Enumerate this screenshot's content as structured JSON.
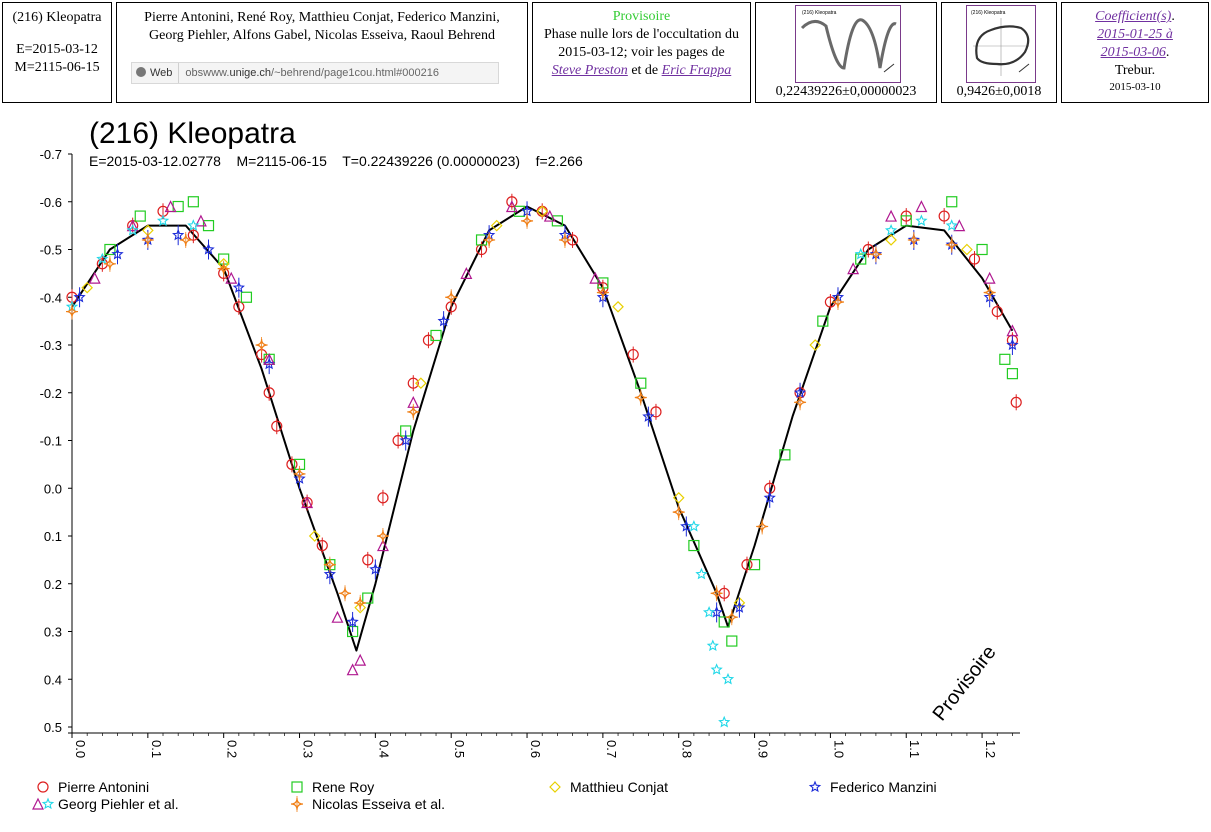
{
  "header": {
    "cell1": {
      "name": "(216) Kleopatra",
      "epoch": "E=2015-03-12",
      "mid": "M=2115-06-15"
    },
    "cell2": {
      "observers_line1": "Pierre Antonini, René Roy, Matthieu Conjat, Federico Manzini,",
      "observers_line2": "Georg Piehler, Alfons Gabel, Nicolas Esseiva, Raoul Behrend",
      "web_button": "Web",
      "web_url_prefix": "obswww.",
      "web_url_domain": "unige.ch",
      "web_url_rest": "/~behrend/page1cou.html#000216"
    },
    "cell3": {
      "status": "Provisoire",
      "line1": "Phase nulle lors de l'occultation du",
      "line2": "2015-03-12; voir les pages de",
      "link1": "Steve Preston",
      "connector": "et de",
      "link2": "Eric Frappa",
      "status_color": "#33cc33"
    },
    "cell4": {
      "value": "0,22439226±0,00000023",
      "thumb_title": "(216) Kleopatra"
    },
    "cell5": {
      "value": "0,9426±0,0018",
      "thumb_title": "(216) Kleopatra"
    },
    "cell6": {
      "link1": "Coefficient(s)",
      "link2": "2015-01-25 à",
      "link3": "2015-03-06",
      "author": "Trebur.",
      "date": "2015-03-10"
    }
  },
  "chart_data": {
    "type": "scatter",
    "title": "(216) Kleopatra",
    "subtitle": "E=2015-03-12.02778    M=2115-06-15    T=0.22439226 (0.00000023)    f=2.266",
    "watermark": "Provisoire",
    "xlim": [
      0.0,
      1.25
    ],
    "ylim": [
      -0.7,
      0.5
    ],
    "y_inverted": true,
    "xticks": [
      "0.0",
      "0.1",
      "0.2",
      "0.3",
      "0.4",
      "0.5",
      "0.6",
      "0.7",
      "0.8",
      "0.9",
      "1.0",
      "1.1",
      "1.2"
    ],
    "yticks": [
      "-0.7",
      "-0.6",
      "-0.5",
      "-0.4",
      "-0.3",
      "-0.2",
      "-0.1",
      "0.0",
      "0.1",
      "0.2",
      "0.3",
      "0.4",
      "0.5"
    ],
    "fit_curve": {
      "color": "#000000",
      "x": [
        0.0,
        0.05,
        0.1,
        0.15,
        0.2,
        0.25,
        0.3,
        0.35,
        0.375,
        0.4,
        0.45,
        0.5,
        0.55,
        0.6,
        0.65,
        0.7,
        0.75,
        0.8,
        0.85,
        0.865,
        0.9,
        0.95,
        1.0,
        1.05,
        1.1,
        1.15,
        1.2,
        1.24
      ],
      "y": [
        -0.38,
        -0.5,
        -0.55,
        -0.55,
        -0.46,
        -0.25,
        0.0,
        0.22,
        0.34,
        0.2,
        -0.12,
        -0.38,
        -0.54,
        -0.59,
        -0.55,
        -0.42,
        -0.2,
        0.04,
        0.22,
        0.29,
        0.12,
        -0.15,
        -0.38,
        -0.5,
        -0.55,
        -0.54,
        -0.44,
        -0.33
      ]
    },
    "series": [
      {
        "name": "Pierre Antonini",
        "color": "#dd2020",
        "marker": "circle-bar",
        "points": [
          [
            0.0,
            -0.4
          ],
          [
            0.04,
            -0.47
          ],
          [
            0.08,
            -0.55
          ],
          [
            0.12,
            -0.58
          ],
          [
            0.16,
            -0.53
          ],
          [
            0.2,
            -0.45
          ],
          [
            0.22,
            -0.38
          ],
          [
            0.25,
            -0.28
          ],
          [
            0.26,
            -0.2
          ],
          [
            0.27,
            -0.13
          ],
          [
            0.29,
            -0.05
          ],
          [
            0.31,
            0.03
          ],
          [
            0.33,
            0.12
          ],
          [
            0.39,
            0.15
          ],
          [
            0.41,
            0.02
          ],
          [
            0.43,
            -0.1
          ],
          [
            0.45,
            -0.22
          ],
          [
            0.47,
            -0.31
          ],
          [
            0.5,
            -0.38
          ],
          [
            0.54,
            -0.5
          ],
          [
            0.58,
            -0.6
          ],
          [
            0.62,
            -0.58
          ],
          [
            0.66,
            -0.52
          ],
          [
            0.7,
            -0.42
          ],
          [
            0.74,
            -0.28
          ],
          [
            0.77,
            -0.16
          ],
          [
            0.86,
            0.22
          ],
          [
            0.89,
            0.16
          ],
          [
            0.92,
            0.0
          ],
          [
            0.96,
            -0.2
          ],
          [
            1.0,
            -0.39
          ],
          [
            1.05,
            -0.5
          ],
          [
            1.1,
            -0.57
          ],
          [
            1.15,
            -0.57
          ],
          [
            1.19,
            -0.48
          ],
          [
            1.22,
            -0.37
          ],
          [
            1.24,
            -0.31
          ],
          [
            1.245,
            -0.18
          ]
        ]
      },
      {
        "name": "Rene Roy",
        "color": "#22cc22",
        "marker": "square",
        "points": [
          [
            0.05,
            -0.5
          ],
          [
            0.09,
            -0.57
          ],
          [
            0.14,
            -0.59
          ],
          [
            0.16,
            -0.6
          ],
          [
            0.18,
            -0.55
          ],
          [
            0.2,
            -0.48
          ],
          [
            0.23,
            -0.4
          ],
          [
            0.26,
            -0.27
          ],
          [
            0.3,
            -0.05
          ],
          [
            0.34,
            0.16
          ],
          [
            0.37,
            0.3
          ],
          [
            0.39,
            0.23
          ],
          [
            0.44,
            -0.12
          ],
          [
            0.48,
            -0.32
          ],
          [
            0.54,
            -0.52
          ],
          [
            0.59,
            -0.58
          ],
          [
            0.64,
            -0.56
          ],
          [
            0.7,
            -0.43
          ],
          [
            0.75,
            -0.22
          ],
          [
            0.82,
            0.12
          ],
          [
            0.86,
            0.28
          ],
          [
            0.87,
            0.32
          ],
          [
            0.9,
            0.16
          ],
          [
            0.94,
            -0.07
          ],
          [
            0.99,
            -0.35
          ],
          [
            1.04,
            -0.48
          ],
          [
            1.1,
            -0.56
          ],
          [
            1.16,
            -0.6
          ],
          [
            1.2,
            -0.5
          ],
          [
            1.23,
            -0.27
          ],
          [
            1.24,
            -0.24
          ]
        ]
      },
      {
        "name": "Matthieu Conjat",
        "color": "#e8d000",
        "marker": "diamond",
        "points": [
          [
            0.02,
            -0.42
          ],
          [
            0.1,
            -0.54
          ],
          [
            0.2,
            -0.47
          ],
          [
            0.32,
            0.1
          ],
          [
            0.38,
            0.25
          ],
          [
            0.46,
            -0.22
          ],
          [
            0.56,
            -0.55
          ],
          [
            0.62,
            -0.58
          ],
          [
            0.72,
            -0.38
          ],
          [
            0.8,
            0.02
          ],
          [
            0.88,
            0.24
          ],
          [
            0.98,
            -0.3
          ],
          [
            1.08,
            -0.52
          ],
          [
            1.18,
            -0.5
          ]
        ]
      },
      {
        "name": "Federico Manzini",
        "color": "#1a2ad8",
        "marker": "bar-star",
        "points": [
          [
            0.01,
            -0.4
          ],
          [
            0.06,
            -0.49
          ],
          [
            0.1,
            -0.52
          ],
          [
            0.14,
            -0.53
          ],
          [
            0.18,
            -0.5
          ],
          [
            0.22,
            -0.42
          ],
          [
            0.26,
            -0.26
          ],
          [
            0.3,
            -0.02
          ],
          [
            0.34,
            0.18
          ],
          [
            0.37,
            0.28
          ],
          [
            0.4,
            0.17
          ],
          [
            0.44,
            -0.1
          ],
          [
            0.49,
            -0.35
          ],
          [
            0.55,
            -0.53
          ],
          [
            0.6,
            -0.58
          ],
          [
            0.65,
            -0.53
          ],
          [
            0.7,
            -0.4
          ],
          [
            0.76,
            -0.15
          ],
          [
            0.81,
            0.08
          ],
          [
            0.85,
            0.26
          ],
          [
            0.88,
            0.25
          ],
          [
            0.92,
            0.02
          ],
          [
            0.96,
            -0.2
          ],
          [
            1.01,
            -0.4
          ],
          [
            1.06,
            -0.49
          ],
          [
            1.11,
            -0.52
          ],
          [
            1.16,
            -0.51
          ],
          [
            1.21,
            -0.4
          ],
          [
            1.24,
            -0.3
          ]
        ]
      },
      {
        "name": "Georg Piehler et al.",
        "color": "#b01890",
        "marker": "triangle",
        "points": [
          [
            0.03,
            -0.44
          ],
          [
            0.08,
            -0.55
          ],
          [
            0.13,
            -0.59
          ],
          [
            0.17,
            -0.56
          ],
          [
            0.21,
            -0.44
          ],
          [
            0.26,
            -0.27
          ],
          [
            0.31,
            0.03
          ],
          [
            0.35,
            0.27
          ],
          [
            0.37,
            0.38
          ],
          [
            0.38,
            0.36
          ],
          [
            0.41,
            0.12
          ],
          [
            0.45,
            -0.18
          ],
          [
            0.52,
            -0.45
          ],
          [
            0.58,
            -0.59
          ],
          [
            0.63,
            -0.57
          ],
          [
            0.69,
            -0.44
          ],
          [
            1.03,
            -0.46
          ],
          [
            1.08,
            -0.57
          ],
          [
            1.12,
            -0.59
          ],
          [
            1.17,
            -0.55
          ],
          [
            1.21,
            -0.44
          ],
          [
            1.24,
            -0.33
          ]
        ]
      },
      {
        "name": "Georg Piehler et al.",
        "color": "#22d8e8",
        "marker": "star",
        "points": [
          [
            0.0,
            -0.38
          ],
          [
            0.04,
            -0.48
          ],
          [
            0.08,
            -0.54
          ],
          [
            0.12,
            -0.56
          ],
          [
            0.16,
            -0.55
          ],
          [
            0.82,
            0.08
          ],
          [
            0.83,
            0.18
          ],
          [
            0.84,
            0.26
          ],
          [
            0.845,
            0.33
          ],
          [
            0.85,
            0.38
          ],
          [
            0.86,
            0.49
          ],
          [
            0.865,
            0.4
          ],
          [
            1.04,
            -0.49
          ],
          [
            1.08,
            -0.54
          ],
          [
            1.12,
            -0.56
          ],
          [
            1.16,
            -0.55
          ]
        ]
      },
      {
        "name": "Nicolas Esseiva et al.",
        "color": "#f08018",
        "marker": "star4",
        "points": [
          [
            0.0,
            -0.37
          ],
          [
            0.05,
            -0.47
          ],
          [
            0.1,
            -0.52
          ],
          [
            0.15,
            -0.52
          ],
          [
            0.2,
            -0.46
          ],
          [
            0.25,
            -0.3
          ],
          [
            0.3,
            -0.03
          ],
          [
            0.34,
            0.16
          ],
          [
            0.36,
            0.22
          ],
          [
            0.38,
            0.24
          ],
          [
            0.41,
            0.1
          ],
          [
            0.45,
            -0.16
          ],
          [
            0.5,
            -0.4
          ],
          [
            0.55,
            -0.52
          ],
          [
            0.6,
            -0.56
          ],
          [
            0.65,
            -0.52
          ],
          [
            0.7,
            -0.41
          ],
          [
            0.75,
            -0.19
          ],
          [
            0.8,
            0.05
          ],
          [
            0.85,
            0.22
          ],
          [
            0.87,
            0.27
          ],
          [
            0.91,
            0.08
          ],
          [
            0.96,
            -0.18
          ],
          [
            1.01,
            -0.39
          ],
          [
            1.06,
            -0.49
          ],
          [
            1.11,
            -0.52
          ],
          [
            1.16,
            -0.51
          ],
          [
            1.21,
            -0.41
          ]
        ]
      }
    ],
    "legend": [
      {
        "label": "Pierre Antonini",
        "marker": "circle",
        "color": "#dd2020"
      },
      {
        "label": "Rene Roy",
        "marker": "square",
        "color": "#22cc22"
      },
      {
        "label": "Matthieu Conjat",
        "marker": "diamond",
        "color": "#e8d000"
      },
      {
        "label": "Federico Manzini",
        "marker": "bar-star",
        "color": "#1a2ad8"
      },
      {
        "label": "Georg Piehler et al.",
        "marker": "triangle+star",
        "color": "#b01890",
        "color2": "#22d8e8"
      },
      {
        "label": "Nicolas Esseiva et al.",
        "marker": "star4",
        "color": "#f08018"
      }
    ]
  }
}
